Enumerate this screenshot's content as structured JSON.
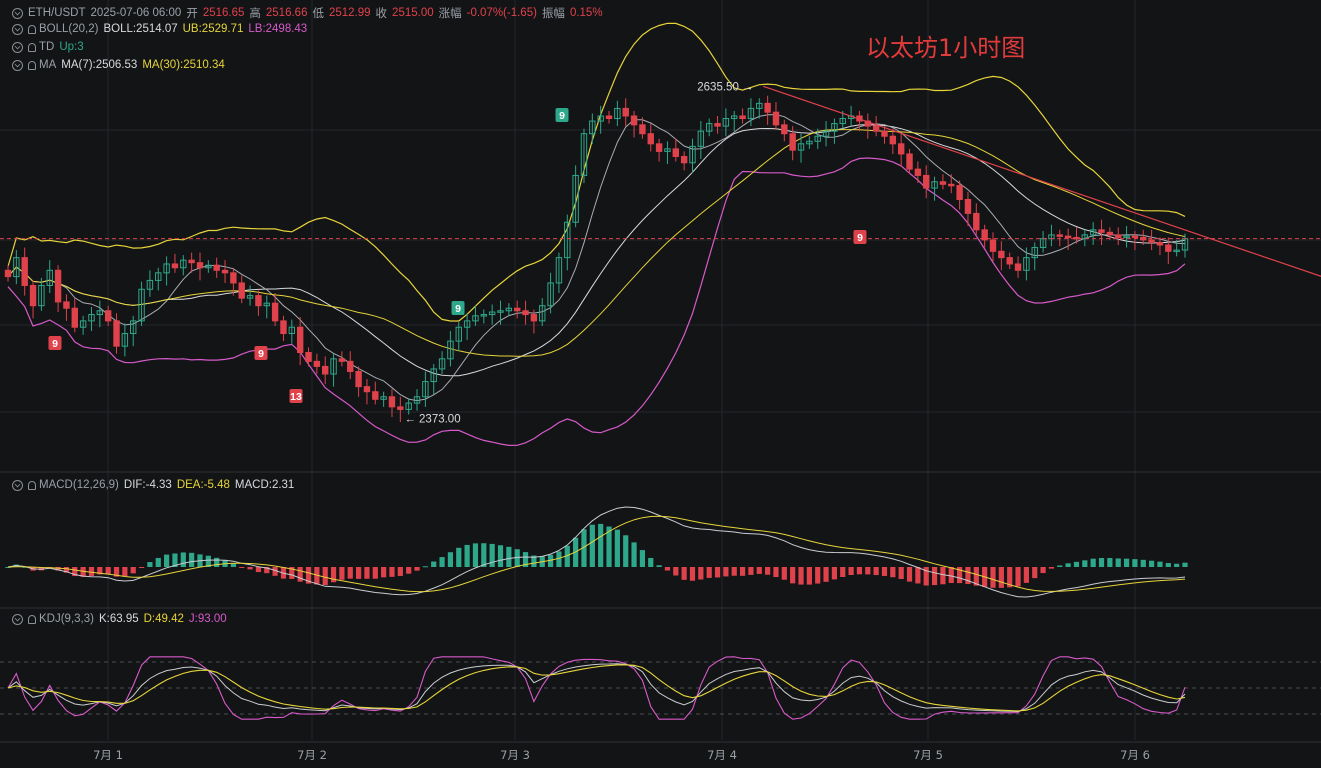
{
  "header": {
    "symbol": "ETH/USDT",
    "datetime": "2025-07-06 06:00",
    "open_label": "开",
    "open": "2516.65",
    "high_label": "高",
    "high": "2516.66",
    "low_label": "低",
    "low": "2512.99",
    "close_label": "收",
    "close": "2515.00",
    "change_label": "涨幅",
    "change": "-0.07%(-1.65)",
    "amplitude_label": "振幅",
    "amplitude": "0.15%"
  },
  "indicators": {
    "boll": {
      "name": "BOLL(20,2)",
      "mid": "BOLL:2514.07",
      "ub": "UB:2529.71",
      "lb": "LB:2498.43"
    },
    "td": {
      "name": "TD",
      "value": "Up:3"
    },
    "ma": {
      "name": "MA",
      "ma7": "MA(7):2506.53",
      "ma30": "MA(30):2510.34"
    },
    "macd": {
      "name": "MACD(12,26,9)",
      "dif": "DIF:-4.33",
      "dea": "DEA:-5.48",
      "macd": "MACD:2.31"
    },
    "kdj": {
      "name": "KDJ(9,3,3)",
      "k": "K:63.95",
      "d": "D:49.42",
      "j": "J:93.00"
    }
  },
  "watermark": "以太坊1小时图",
  "annotations": {
    "high_marker": "2635.50 →",
    "low_marker": "← 2373.00",
    "td_labels": [
      "9",
      "9",
      "13",
      "9",
      "9",
      "9"
    ]
  },
  "colors": {
    "background": "#131416",
    "up": "#2ea88b",
    "down": "#e0424c",
    "grid": "#23262b",
    "boll_mid": "#d8dadd",
    "boll_ub": "#e6d43a",
    "boll_lb": "#d65ac9",
    "trendline": "#e0424c"
  },
  "chart_data": {
    "type": "candlestick",
    "interval": "1h",
    "x_ticks": [
      "7月 1",
      "7月 2",
      "7月 3",
      "7月 4",
      "7月 5",
      "7月 6"
    ],
    "price_range": [
      2340,
      2680
    ],
    "marked_high": 2635.5,
    "marked_low": 2373.0,
    "current_price": 2515.0,
    "candles_close": [
      2485,
      2500,
      2478,
      2462,
      2478,
      2490,
      2465,
      2460,
      2445,
      2450,
      2455,
      2458,
      2450,
      2430,
      2440,
      2450,
      2475,
      2482,
      2488,
      2495,
      2492,
      2498,
      2496,
      2492,
      2494,
      2490,
      2488,
      2480,
      2468,
      2470,
      2462,
      2464,
      2450,
      2440,
      2445,
      2425,
      2418,
      2414,
      2408,
      2420,
      2418,
      2410,
      2398,
      2394,
      2388,
      2390,
      2382,
      2380,
      2385,
      2390,
      2402,
      2412,
      2420,
      2434,
      2445,
      2450,
      2454,
      2455,
      2457,
      2458,
      2460,
      2458,
      2455,
      2450,
      2462,
      2480,
      2500,
      2528,
      2565,
      2598,
      2608,
      2612,
      2610,
      2618,
      2612,
      2605,
      2598,
      2590,
      2584,
      2586,
      2580,
      2575,
      2588,
      2600,
      2606,
      2604,
      2610,
      2612,
      2610,
      2618,
      2622,
      2615,
      2605,
      2598,
      2585,
      2590,
      2592,
      2596,
      2600,
      2606,
      2610,
      2612,
      2608,
      2604,
      2600,
      2596,
      2590,
      2582,
      2570,
      2565,
      2555,
      2560,
      2558,
      2557,
      2546,
      2535,
      2522,
      2514,
      2505,
      2500,
      2495,
      2490,
      2500,
      2508,
      2515,
      2518,
      2517,
      2516,
      2515,
      2518,
      2522,
      2520,
      2518,
      2516,
      2517,
      2516,
      2514,
      2512,
      2510,
      2505,
      2506,
      2515
    ],
    "ma7_last": 2506.53,
    "ma30_last": 2510.34,
    "boll": {
      "mid": 2514.07,
      "ub": 2529.71,
      "lb": 2498.43
    },
    "macd": {
      "dif": -4.33,
      "dea": -5.48,
      "macd": 2.31
    },
    "kdj": {
      "k": 63.95,
      "d": 49.42,
      "j": 93.0
    }
  }
}
